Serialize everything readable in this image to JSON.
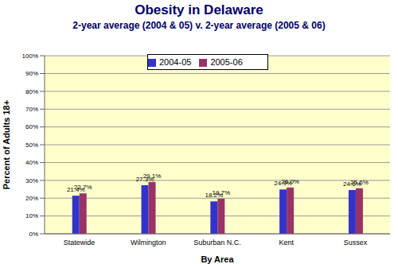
{
  "chart_data": {
    "type": "bar",
    "title": "Obesity in Delaware",
    "subtitle": "2-year average (2004 & 05) v. 2-year average (2005 & 06)",
    "x_label": "By Area",
    "y_label": "Percent of Adults 18+",
    "categories": [
      "Statewide",
      "Wilmington",
      "Suburban N.C.",
      "Kent",
      "Sussex"
    ],
    "series": [
      {
        "name": "2004-05",
        "color": "#3333cc",
        "values": [
          21.4,
          27.3,
          18.2,
          24.9,
          24.6
        ],
        "value_labels": [
          "21.4%",
          "27.3%",
          "18.2%",
          "24.9%",
          "24.6%"
        ]
      },
      {
        "name": "2005-06",
        "color": "#993366",
        "values": [
          22.7,
          29.1,
          19.7,
          26.0,
          25.6
        ],
        "value_labels": [
          "22.7%",
          "29.1%",
          "19.7%",
          "26.0%",
          "25.6%"
        ]
      }
    ],
    "ylim": [
      0,
      100
    ],
    "yticks": [
      {
        "value": 0,
        "label": "0%"
      },
      {
        "value": 10,
        "label": "10%"
      },
      {
        "value": 20,
        "label": "20%"
      },
      {
        "value": 30,
        "label": "30%"
      },
      {
        "value": 40,
        "label": "40%"
      },
      {
        "value": 50,
        "label": "50%"
      },
      {
        "value": 60,
        "label": "60%"
      },
      {
        "value": 70,
        "label": "70%"
      },
      {
        "value": 80,
        "label": "80%"
      },
      {
        "value": 90,
        "label": "90%"
      },
      {
        "value": 100,
        "label": "100%"
      }
    ],
    "grid": true,
    "legend": "top",
    "data_labels": true
  }
}
